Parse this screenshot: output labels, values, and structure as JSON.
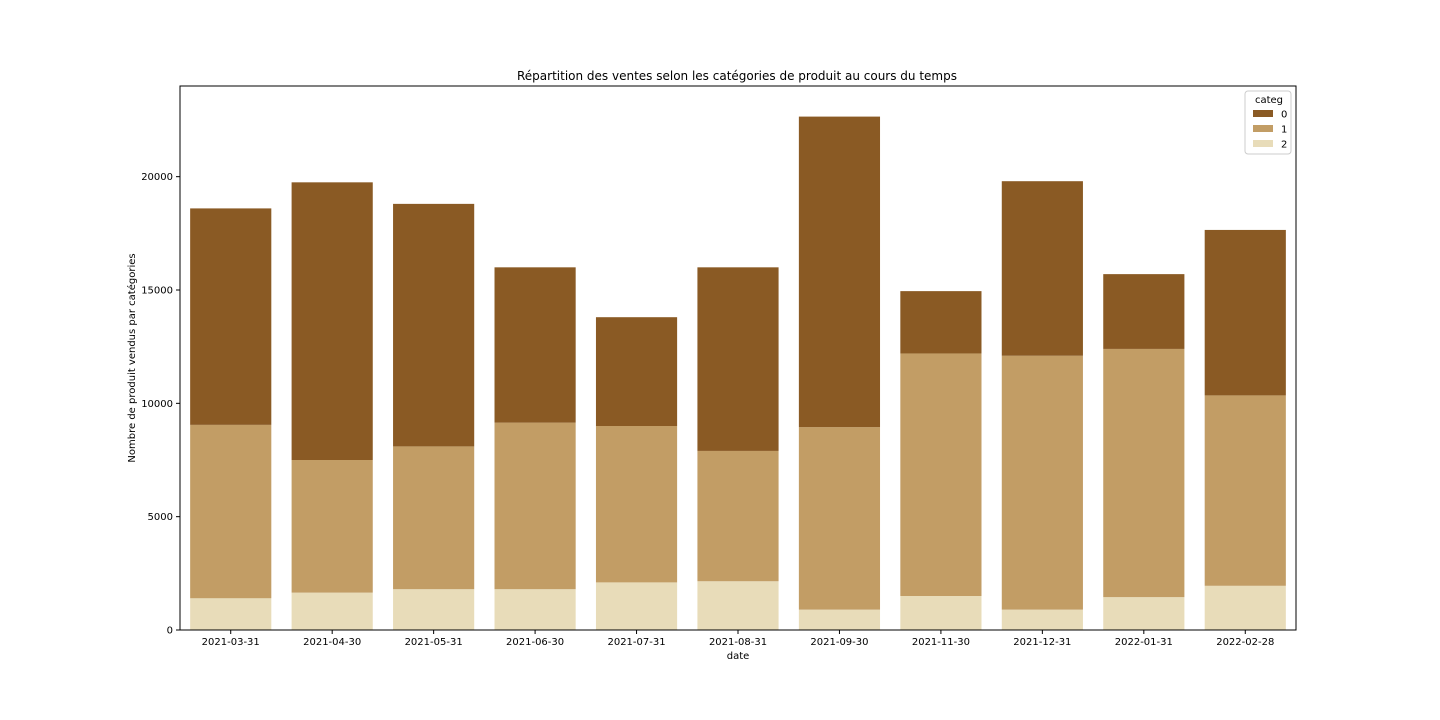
{
  "chart_data": {
    "type": "bar",
    "stacked": true,
    "title": "Répartition des ventes selon les catégories de produit au cours du temps",
    "xlabel": "date",
    "ylabel": "Nombre de produit vendus par catégories",
    "ylim": [
      0,
      24000
    ],
    "yticks": [
      0,
      5000,
      10000,
      15000,
      20000
    ],
    "grid": false,
    "legend": {
      "title": "categ",
      "placement": "top-right"
    },
    "categories": [
      "2021-03-31",
      "2021-04-30",
      "2021-05-31",
      "2021-06-30",
      "2021-07-31",
      "2021-08-31",
      "2021-09-30",
      "2021-11-30",
      "2021-12-31",
      "2022-01-31",
      "2022-02-28"
    ],
    "series": [
      {
        "name": "2",
        "color": "#e8dcb9",
        "values": [
          1400,
          1650,
          1800,
          1800,
          2100,
          2150,
          900,
          1500,
          900,
          1450,
          1950
        ]
      },
      {
        "name": "1",
        "color": "#c29d65",
        "values": [
          7650,
          5850,
          6300,
          7350,
          6900,
          5750,
          8050,
          10700,
          11200,
          10950,
          8400
        ]
      },
      {
        "name": "0",
        "color": "#8a5a24",
        "values": [
          9550,
          12250,
          10700,
          6850,
          4800,
          8100,
          13700,
          2750,
          7700,
          3300,
          7300
        ]
      }
    ],
    "legend_order": [
      "0",
      "1",
      "2"
    ]
  }
}
